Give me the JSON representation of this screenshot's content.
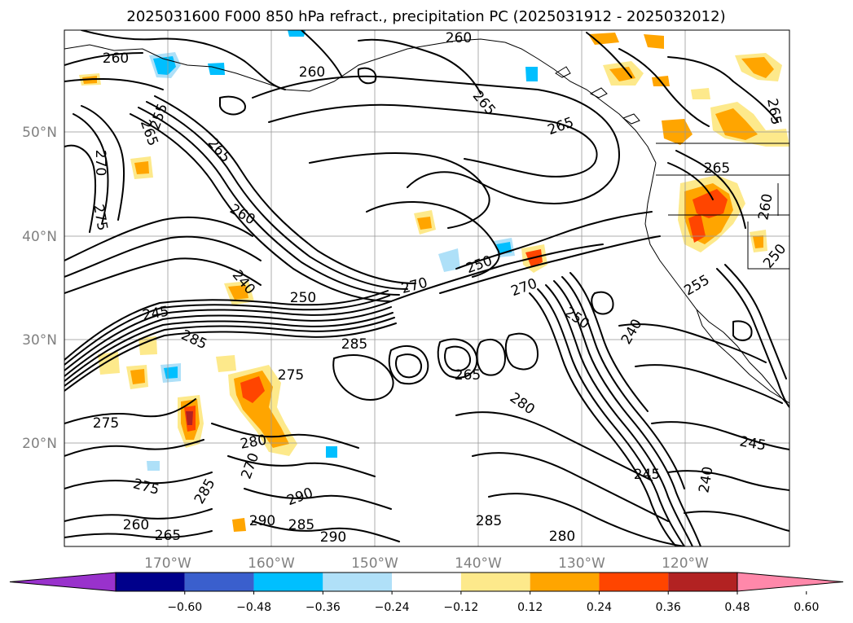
{
  "title": "2025031600 F000 850 hPa refract., precipitation PC (2025031912 - 2025032012)",
  "map": {
    "lat_labels": [
      "50°N",
      "40°N",
      "30°N",
      "20°N"
    ],
    "lon_labels": [
      "170°W",
      "160°W",
      "150°W",
      "140°W",
      "130°W",
      "120°W"
    ],
    "contour_labels": [
      "260",
      "260",
      "260",
      "265",
      "265",
      "265",
      "265",
      "265",
      "270",
      "270",
      "275",
      "255",
      "260",
      "240",
      "250",
      "245",
      "285",
      "270",
      "275",
      "285",
      "265",
      "250",
      "280",
      "250",
      "240",
      "255",
      "245",
      "240",
      "245",
      "280",
      "275",
      "290",
      "285",
      "290",
      "290",
      "285",
      "280",
      "285",
      "260",
      "265",
      "270",
      "275",
      "250",
      "260",
      "265"
    ],
    "shading_colors": {
      "neg_high": "#00bfff",
      "neg_low": "#aee0f8",
      "pos_low": "#fde98b",
      "pos_mid": "#ffa500",
      "pos_high": "#ff4500",
      "pos_top": "#b22222"
    }
  },
  "colorbar": {
    "ticks": [
      "−0.60",
      "−0.48",
      "−0.36",
      "−0.24",
      "−0.12",
      "0.12",
      "0.24",
      "0.36",
      "0.48",
      "0.60"
    ],
    "colors": [
      "#9932cc",
      "#00008b",
      "#3a5fcd",
      "#00bfff",
      "#b0e0f8",
      "#ffffff",
      "#fde98b",
      "#ffa500",
      "#ff4500",
      "#b22222",
      "#ff88aa"
    ]
  }
}
